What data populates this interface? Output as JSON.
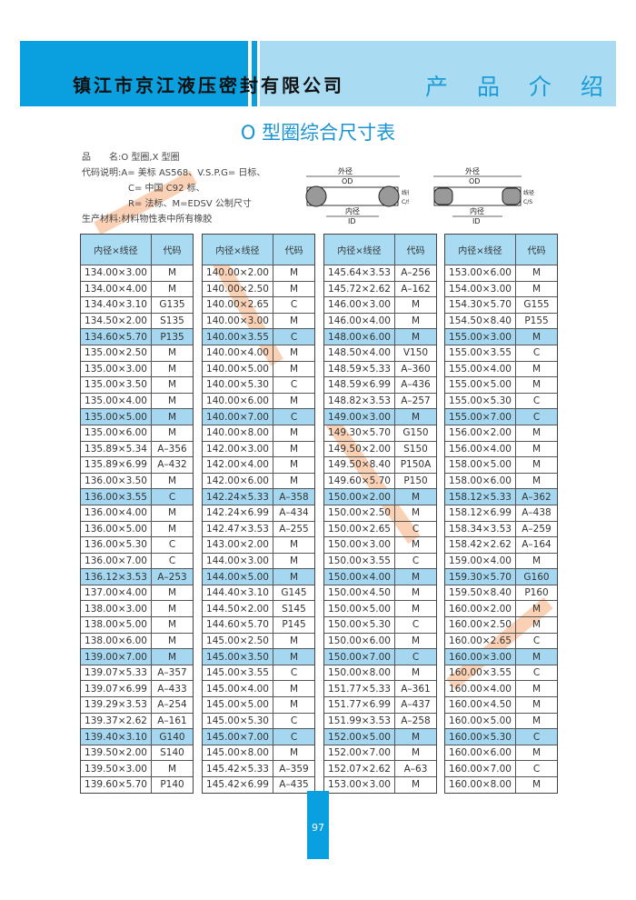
{
  "header": {
    "company": "镇江市京江液压密封有限公司",
    "section": "产 品 介 绍",
    "colors": {
      "dark": "#0aa0df",
      "light": "#a9dcf3"
    }
  },
  "title": "O 型圈综合尺寸表",
  "info": {
    "name": "品　　名:O 型圈,X 型圈",
    "code1": "代码说明:A= 美标 AS568、V.S.P.G= 日标、",
    "code2": "C= 中国 C92 标、",
    "code3": "R= 法标、M=EDSV 公制尺寸",
    "material": "生产材料:材料物性表中所有橡胶"
  },
  "diagram": {
    "od_cn": "外径",
    "od": "OD",
    "id_cn": "内径",
    "id": "ID",
    "cs_cn": "线径",
    "cs": "C/S"
  },
  "table_headers": {
    "size": "内径×线径",
    "code": "代码"
  },
  "tables": [
    [
      [
        "134.00×3.00",
        "M"
      ],
      [
        "134.00×4.00",
        "M"
      ],
      [
        "134.40×3.10",
        "G135"
      ],
      [
        "134.50×2.00",
        "S135"
      ],
      [
        "134.60×5.70",
        "P135"
      ],
      [
        "135.00×2.50",
        "M"
      ],
      [
        "135.00×3.00",
        "M"
      ],
      [
        "135.00×3.50",
        "M"
      ],
      [
        "135.00×4.00",
        "M"
      ],
      [
        "135.00×5.00",
        "M"
      ],
      [
        "135.00×6.00",
        "M"
      ],
      [
        "135.89×5.34",
        "A–356"
      ],
      [
        "135.89×6.99",
        "A–432"
      ],
      [
        "136.00×3.50",
        "M"
      ],
      [
        "136.00×3.55",
        "C"
      ],
      [
        "136.00×4.00",
        "M"
      ],
      [
        "136.00×5.00",
        "M"
      ],
      [
        "136.00×5.30",
        "C"
      ],
      [
        "136.00×7.00",
        "C"
      ],
      [
        "136.12×3.53",
        "A–253"
      ],
      [
        "137.00×4.00",
        "M"
      ],
      [
        "138.00×3.00",
        "M"
      ],
      [
        "138.00×5.00",
        "M"
      ],
      [
        "138.00×6.00",
        "M"
      ],
      [
        "139.00×7.00",
        "M"
      ],
      [
        "139.07×5.33",
        "A–357"
      ],
      [
        "139.07×6.99",
        "A–433"
      ],
      [
        "139.29×3.53",
        "A–254"
      ],
      [
        "139.37×2.62",
        "A–161"
      ],
      [
        "139.40×3.10",
        "G140"
      ],
      [
        "139.50×2.00",
        "S140"
      ],
      [
        "139.50×3.00",
        "M"
      ],
      [
        "139.60×5.70",
        "P140"
      ]
    ],
    [
      [
        "140.00×2.00",
        "M"
      ],
      [
        "140.00×2.50",
        "M"
      ],
      [
        "140.00×2.65",
        "C"
      ],
      [
        "140.00×3.00",
        "M"
      ],
      [
        "140.00×3.55",
        "C"
      ],
      [
        "140.00×4.00",
        "M"
      ],
      [
        "140.00×5.00",
        "M"
      ],
      [
        "140.00×5.30",
        "C"
      ],
      [
        "140.00×6.00",
        "M"
      ],
      [
        "140.00×7.00",
        "C"
      ],
      [
        "140.00×8.00",
        "M"
      ],
      [
        "142.00×3.00",
        "M"
      ],
      [
        "142.00×4.00",
        "M"
      ],
      [
        "142.00×6.00",
        "M"
      ],
      [
        "142.24×5.33",
        "A–358"
      ],
      [
        "142.24×6.99",
        "A–434"
      ],
      [
        "142.47×3.53",
        "A–255"
      ],
      [
        "143.00×2.00",
        "M"
      ],
      [
        "144.00×3.00",
        "M"
      ],
      [
        "144.00×5.00",
        "M"
      ],
      [
        "144.40×3.10",
        "G145"
      ],
      [
        "144.50×2.00",
        "S145"
      ],
      [
        "144.60×5.70",
        "P145"
      ],
      [
        "145.00×2.50",
        "M"
      ],
      [
        "145.00×3.50",
        "M"
      ],
      [
        "145.00×3.55",
        "C"
      ],
      [
        "145.00×4.00",
        "M"
      ],
      [
        "145.00×5.00",
        "M"
      ],
      [
        "145.00×5.30",
        "C"
      ],
      [
        "145.00×7.00",
        "C"
      ],
      [
        "145.00×8.00",
        "M"
      ],
      [
        "145.42×5.33",
        "A–359"
      ],
      [
        "145.42×6.99",
        "A–435"
      ]
    ],
    [
      [
        "145.64×3.53",
        "A–256"
      ],
      [
        "145.72×2.62",
        "A–162"
      ],
      [
        "146.00×3.00",
        "M"
      ],
      [
        "146.00×4.00",
        "M"
      ],
      [
        "148.00×6.00",
        "M"
      ],
      [
        "148.50×4.00",
        "V150"
      ],
      [
        "148.59×5.33",
        "A–360"
      ],
      [
        "148.59×6.99",
        "A–436"
      ],
      [
        "148.82×3.53",
        "A–257"
      ],
      [
        "149.00×3.00",
        "M"
      ],
      [
        "149.30×5.70",
        "G150"
      ],
      [
        "149.50×2.00",
        "S150"
      ],
      [
        "149.50×8.40",
        "P150A"
      ],
      [
        "149.60×5.70",
        "P150"
      ],
      [
        "150.00×2.00",
        "M"
      ],
      [
        "150.00×2.50",
        "M"
      ],
      [
        "150.00×2.65",
        "C"
      ],
      [
        "150.00×3.00",
        "M"
      ],
      [
        "150.00×3.55",
        "C"
      ],
      [
        "150.00×4.00",
        "M"
      ],
      [
        "150.00×4.50",
        "M"
      ],
      [
        "150.00×5.00",
        "M"
      ],
      [
        "150.00×5.30",
        "C"
      ],
      [
        "150.00×6.00",
        "M"
      ],
      [
        "150.00×7.00",
        "C"
      ],
      [
        "150.00×8.00",
        "M"
      ],
      [
        "151.77×5.33",
        "A–361"
      ],
      [
        "151.77×6.99",
        "A–437"
      ],
      [
        "151.99×3.53",
        "A–258"
      ],
      [
        "152.00×5.00",
        "M"
      ],
      [
        "152.00×7.00",
        "M"
      ],
      [
        "152.07×2.62",
        "A–63"
      ],
      [
        "153.00×3.00",
        "M"
      ]
    ],
    [
      [
        "153.00×6.00",
        "M"
      ],
      [
        "154.00×3.00",
        "M"
      ],
      [
        "154.30×5.70",
        "G155"
      ],
      [
        "154.50×8.40",
        "P155"
      ],
      [
        "155.00×3.00",
        "M"
      ],
      [
        "155.00×3.55",
        "C"
      ],
      [
        "155.00×4.00",
        "M"
      ],
      [
        "155.00×5.00",
        "M"
      ],
      [
        "155.00×5.30",
        "C"
      ],
      [
        "155.00×7.00",
        "C"
      ],
      [
        "156.00×2.00",
        "M"
      ],
      [
        "156.00×4.00",
        "M"
      ],
      [
        "158.00×5.00",
        "M"
      ],
      [
        "158.00×6.00",
        "M"
      ],
      [
        "158.12×5.33",
        "A–362"
      ],
      [
        "158.12×6.99",
        "A–438"
      ],
      [
        "158.34×3.53",
        "A–259"
      ],
      [
        "158.42×2.62",
        "A–164"
      ],
      [
        "159.00×4.00",
        "M"
      ],
      [
        "159.30×5.70",
        "G160"
      ],
      [
        "159.50×8.40",
        "P160"
      ],
      [
        "160.00×2.00",
        "M"
      ],
      [
        "160.00×2.50",
        "M"
      ],
      [
        "160.00×2.65",
        "C"
      ],
      [
        "160.00×3.00",
        "M"
      ],
      [
        "160.00×3.55",
        "C"
      ],
      [
        "160.00×4.00",
        "M"
      ],
      [
        "160.00×4.50",
        "M"
      ],
      [
        "160.00×5.00",
        "M"
      ],
      [
        "160.00×5.30",
        "C"
      ],
      [
        "160.00×6.00",
        "M"
      ],
      [
        "160.00×7.00",
        "C"
      ],
      [
        "160.00×8.00",
        "M"
      ]
    ]
  ],
  "page_number": "97"
}
